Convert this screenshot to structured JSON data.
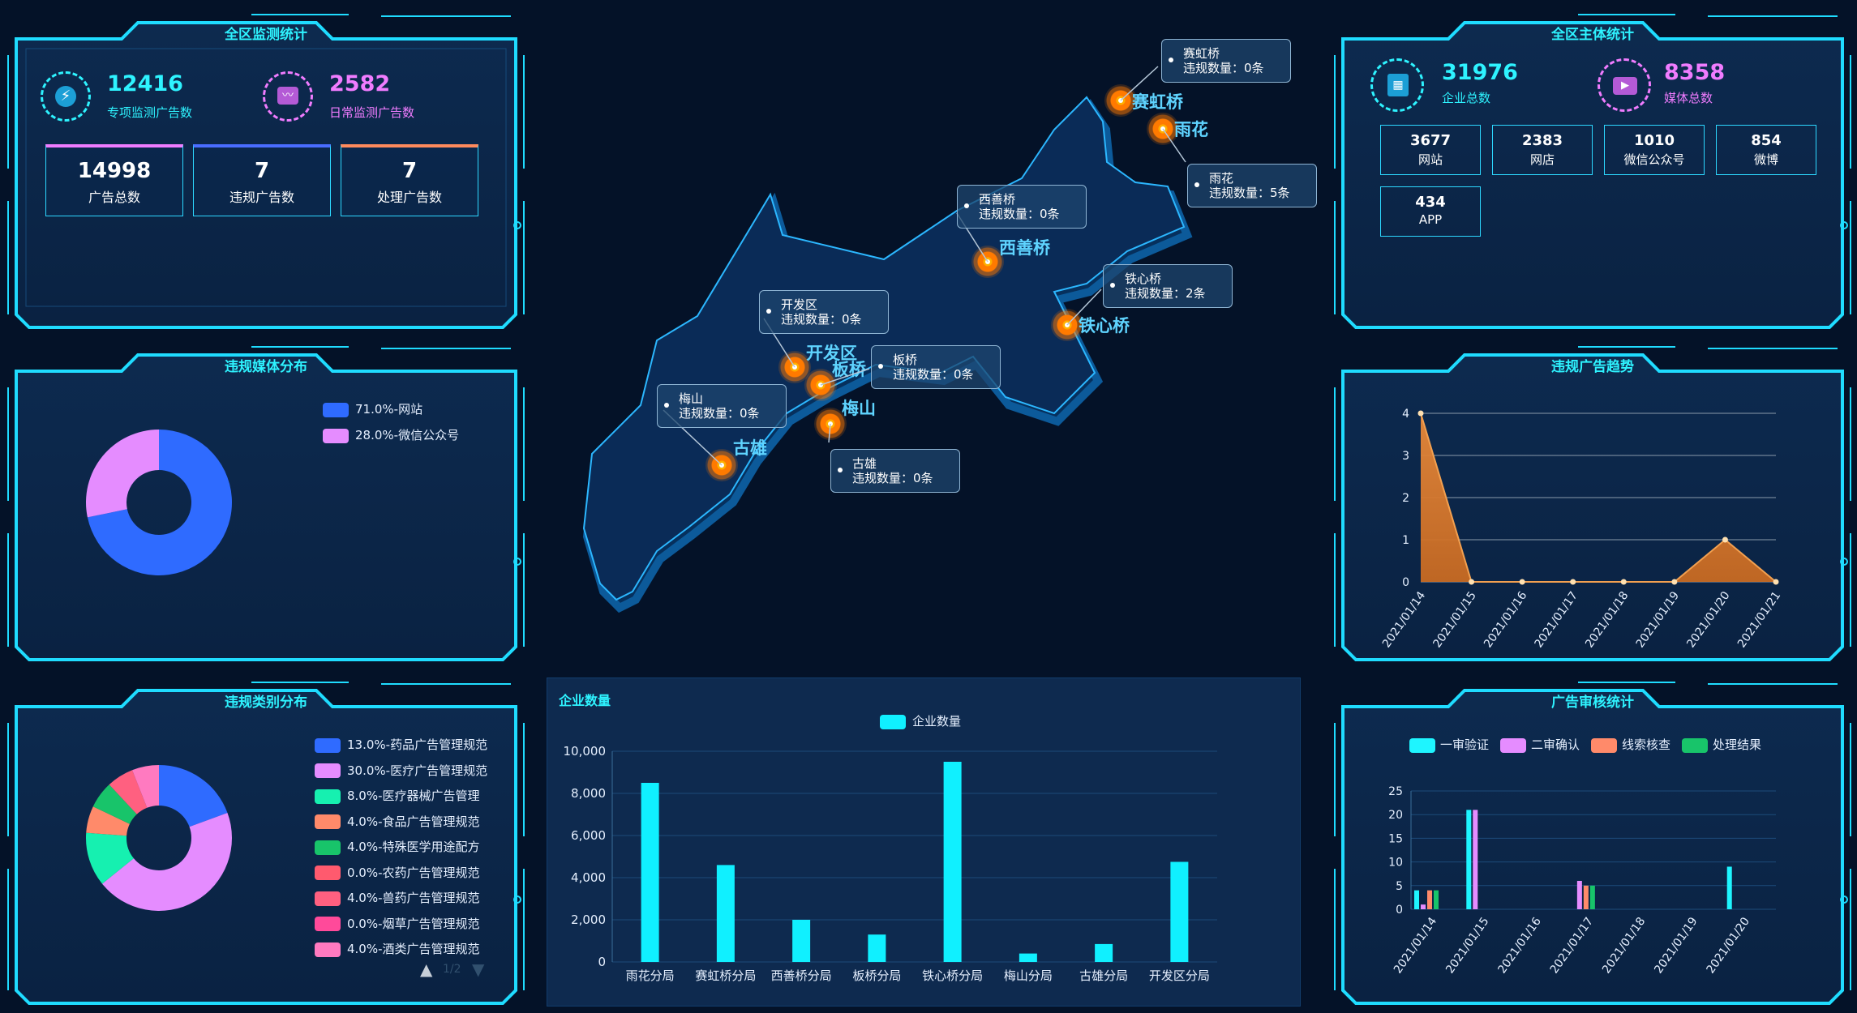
{
  "colors": {
    "accent": "#2ef3ff",
    "pink": "#f07cff",
    "bg": "#041228"
  },
  "monitor": {
    "title": "全区监测统计",
    "special_value": "12416",
    "special_label": "专项监测广告数",
    "daily_value": "2582",
    "daily_label": "日常监测广告数",
    "boxes": [
      {
        "value": "14998",
        "label": "广告总数",
        "bar": "#f07cff"
      },
      {
        "value": "7",
        "label": "违规广告数",
        "bar": "#4a6dff"
      },
      {
        "value": "7",
        "label": "处理广告数",
        "bar": "#ff8a5c"
      }
    ]
  },
  "media_dist": {
    "title": "违规媒体分布",
    "items": [
      {
        "label": "71.0%-网站",
        "value": 71.0,
        "color": "#2f6bff"
      },
      {
        "label": "28.0%-微信公众号",
        "value": 28.0,
        "color": "#e58cff"
      }
    ]
  },
  "category_dist": {
    "title": "违规类别分布",
    "items": [
      {
        "label": "13.0%-药品广告管理规范",
        "value": 13,
        "color": "#2f6bff"
      },
      {
        "label": "30.0%-医疗广告管理规范",
        "value": 30,
        "color": "#e58cff"
      },
      {
        "label": "8.0%-医疗器械广告管理",
        "value": 8,
        "color": "#16f0b0"
      },
      {
        "label": "4.0%-食品广告管理规范",
        "value": 4,
        "color": "#ff8a6a"
      },
      {
        "label": "4.0%-特殊医学用途配方",
        "value": 4,
        "color": "#18c46a"
      },
      {
        "label": "0.0%-农药广告管理规范",
        "value": 0,
        "color": "#ff5a6e"
      },
      {
        "label": "4.0%-兽药广告管理规范",
        "value": 4,
        "color": "#ff6080"
      },
      {
        "label": "0.0%-烟草广告管理规范",
        "value": 0,
        "color": "#ff4a9a"
      },
      {
        "label": "4.0%-酒类广告管理规范",
        "value": 4,
        "color": "#ff7ac0"
      }
    ],
    "pager_up": "▲",
    "pager_down": "▼",
    "pager_text": "1/2"
  },
  "subjects": {
    "title": "全区主体统计",
    "enterprise_value": "31976",
    "enterprise_label": "企业总数",
    "media_value": "8358",
    "media_label": "媒体总数",
    "boxes": [
      {
        "value": "3677",
        "label": "网站"
      },
      {
        "value": "2383",
        "label": "网店"
      },
      {
        "value": "1010",
        "label": "微信公众号"
      },
      {
        "value": "854",
        "label": "微博"
      },
      {
        "value": "434",
        "label": "APP"
      }
    ]
  },
  "trend": {
    "title": "违规广告趋势",
    "chart_data": {
      "type": "area",
      "x": [
        "2021/01/14",
        "2021/01/15",
        "2021/01/16",
        "2021/01/17",
        "2021/01/18",
        "2021/01/19",
        "2021/01/20",
        "2021/01/21"
      ],
      "values": [
        4,
        0,
        0,
        0,
        0,
        0,
        1,
        0
      ],
      "yticks": [
        "0",
        "1",
        "2",
        "3",
        "4"
      ],
      "ylim": [
        0,
        4
      ]
    }
  },
  "review": {
    "title": "广告审核统计",
    "chart_data": {
      "type": "bar",
      "categories": [
        "2021/01/14",
        "2021/01/15",
        "2021/01/16",
        "2021/01/17",
        "2021/01/18",
        "2021/01/19",
        "2021/01/20"
      ],
      "series": [
        {
          "name": "一审验证",
          "color": "#1ef5ff",
          "values": [
            4,
            21,
            0,
            0,
            0,
            0,
            9
          ]
        },
        {
          "name": "二审确认",
          "color": "#e58cff",
          "values": [
            1,
            21,
            0,
            6,
            0,
            0,
            0
          ]
        },
        {
          "name": "线索核查",
          "color": "#ff8a6a",
          "values": [
            4,
            0,
            0,
            5,
            0,
            0,
            0
          ]
        },
        {
          "name": "处理结果",
          "color": "#18c46a",
          "values": [
            4,
            0,
            0,
            5,
            0,
            0,
            0
          ]
        }
      ],
      "yticks": [
        "0",
        "5",
        "10",
        "15",
        "20",
        "25"
      ],
      "ylim": [
        0,
        25
      ]
    }
  },
  "enterprise": {
    "title": "企业数量",
    "chart_data": {
      "type": "bar",
      "legend": "企业数量",
      "categories": [
        "雨花分局",
        "赛虹桥分局",
        "西善桥分局",
        "板桥分局",
        "铁心桥分局",
        "梅山分局",
        "古雄分局",
        "开发区分局"
      ],
      "values": [
        8500,
        4600,
        2000,
        1300,
        9500,
        400,
        850,
        4750
      ],
      "yticks": [
        "0",
        "2,000",
        "4,000",
        "6,000",
        "8,000",
        "10,000"
      ],
      "ylim": [
        0,
        10000
      ]
    }
  },
  "map": {
    "places": [
      {
        "name": "赛虹桥",
        "callout_title": "赛虹桥",
        "callout_text": "违规数量：0条"
      },
      {
        "name": "雨花",
        "callout_title": "雨花",
        "callout_text": "违规数量：5条"
      },
      {
        "name": "西善桥",
        "callout_title": "西善桥",
        "callout_text": "违规数量：0条"
      },
      {
        "name": "铁心桥",
        "callout_title": "铁心桥",
        "callout_text": "违规数量：2条"
      },
      {
        "name": "开发区",
        "callout_title": "开发区",
        "callout_text": "违规数量：0条"
      },
      {
        "name": "板桥",
        "callout_title": "板桥",
        "callout_text": "违规数量：0条"
      },
      {
        "name": "梅山",
        "callout_title": "梅山",
        "callout_text": "违规数量：0条"
      },
      {
        "name": "古雄",
        "callout_title": "古雄",
        "callout_text": "违规数量：0条"
      }
    ]
  }
}
